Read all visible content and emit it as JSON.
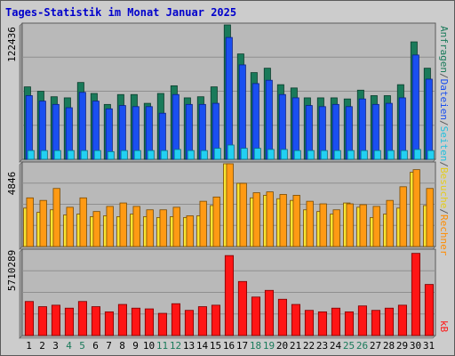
{
  "chart_data": {
    "type": "bar",
    "title": "Tages-Statistik im Monat Januar 2025",
    "categories": [
      "1",
      "2",
      "3",
      "4",
      "5",
      "6",
      "7",
      "8",
      "9",
      "10",
      "11",
      "12",
      "13",
      "14",
      "15",
      "16",
      "17",
      "18",
      "19",
      "20",
      "21",
      "22",
      "23",
      "24",
      "25",
      "26",
      "27",
      "28",
      "29",
      "30",
      "31"
    ],
    "weekend_days": [
      "4",
      "5",
      "11",
      "12",
      "18",
      "19",
      "25",
      "26"
    ],
    "panels": [
      {
        "max_label": "122436",
        "ylim": [
          0,
          122436
        ],
        "series": [
          {
            "name": "Anfragen",
            "color": "#1a7a5a",
            "values": [
              66000,
              62000,
              57000,
              56000,
              70000,
              60000,
              50000,
              59000,
              59000,
              51000,
              60000,
              67000,
              56000,
              57000,
              66000,
              122436,
              96000,
              79000,
              83000,
              68000,
              65000,
              56000,
              56000,
              56000,
              55000,
              63000,
              58000,
              58000,
              68000,
              107000,
              83000
            ]
          },
          {
            "name": "Dateien",
            "color": "#1a4ff0",
            "values": [
              58000,
              53000,
              50000,
              47000,
              61000,
              53000,
              46000,
              49000,
              48000,
              48000,
              42000,
              59000,
              50000,
              50000,
              51000,
              111000,
              86000,
              69000,
              72000,
              59000,
              56000,
              49000,
              48000,
              50000,
              48000,
              55000,
              50000,
              51000,
              56000,
              95000,
              73000
            ]
          },
          {
            "name": "Seiten",
            "color": "#22d0f2",
            "values": [
              8000,
              8000,
              8000,
              8000,
              8000,
              8000,
              7000,
              8000,
              8000,
              8000,
              8000,
              9000,
              8000,
              8000,
              10000,
              13000,
              10000,
              10000,
              9000,
              9000,
              8000,
              8000,
              8000,
              8000,
              8000,
              8000,
              8000,
              8000,
              8000,
              9000,
              8000
            ]
          }
        ]
      },
      {
        "max_label": "4846",
        "ylim": [
          0,
          4846
        ],
        "series": [
          {
            "name": "Besuche",
            "color": "#f9e530",
            "values": [
              2250,
              2000,
              2150,
              1850,
              1900,
              1750,
              1800,
              1750,
              1900,
              1750,
              1700,
              1750,
              1700,
              1800,
              2400,
              4846,
              3700,
              2850,
              3000,
              2800,
              2700,
              2150,
              2050,
              1900,
              2550,
              2300,
              1700,
              1900,
              2250,
              4350,
              2400
            ]
          },
          {
            "name": "Rechner",
            "color": "#ff9a14",
            "values": [
              2850,
              2700,
              3400,
              2300,
              2850,
              2050,
              2350,
              2550,
              2350,
              2150,
              2150,
              2300,
              1800,
              2650,
              2900,
              4846,
              3700,
              3150,
              3200,
              3050,
              3000,
              2650,
              2500,
              2150,
              2500,
              2450,
              2350,
              2700,
              3500,
              4500,
              3400
            ]
          }
        ]
      },
      {
        "max_label": "5710289",
        "ylim": [
          0,
          5710289
        ],
        "series": [
          {
            "name": "kB",
            "color": "#ff1515",
            "values": [
              2300000,
              1950000,
              2050000,
              1850000,
              2300000,
              1950000,
              1600000,
              2100000,
              1850000,
              1800000,
              1500000,
              2150000,
              1700000,
              1950000,
              2050000,
              5400000,
              3650000,
              2600000,
              3050000,
              2450000,
              2100000,
              1700000,
              1600000,
              1850000,
              1600000,
              2000000,
              1700000,
              1850000,
              2050000,
              5550000,
              3450000
            ]
          }
        ]
      }
    ],
    "right_label": {
      "top_parts": [
        {
          "text": "Anfragen",
          "color": "#1a7a5a"
        },
        {
          "text": "/",
          "color": "#5a5a5a"
        },
        {
          "text": "Dateien",
          "color": "#1a4ff0"
        },
        {
          "text": "/",
          "color": "#5a5a5a"
        },
        {
          "text": "Seiten",
          "color": "#22c0dd"
        },
        {
          "text": "/",
          "color": "#5a5a5a"
        },
        {
          "text": "Besuche",
          "color": "#e5cc1a"
        },
        {
          "text": "/",
          "color": "#5a5a5a"
        },
        {
          "text": "Rechner",
          "color": "#ff8c00"
        }
      ],
      "bottom_parts": [
        {
          "text": "kB",
          "color": "#ff1515"
        }
      ]
    },
    "colors": {
      "title": "#0000cc",
      "plot_bg": "#b9b9b9",
      "frame_bg": "#cccccc",
      "weekday_label": "#000000",
      "weekend_label": "#1a7a5a"
    }
  }
}
